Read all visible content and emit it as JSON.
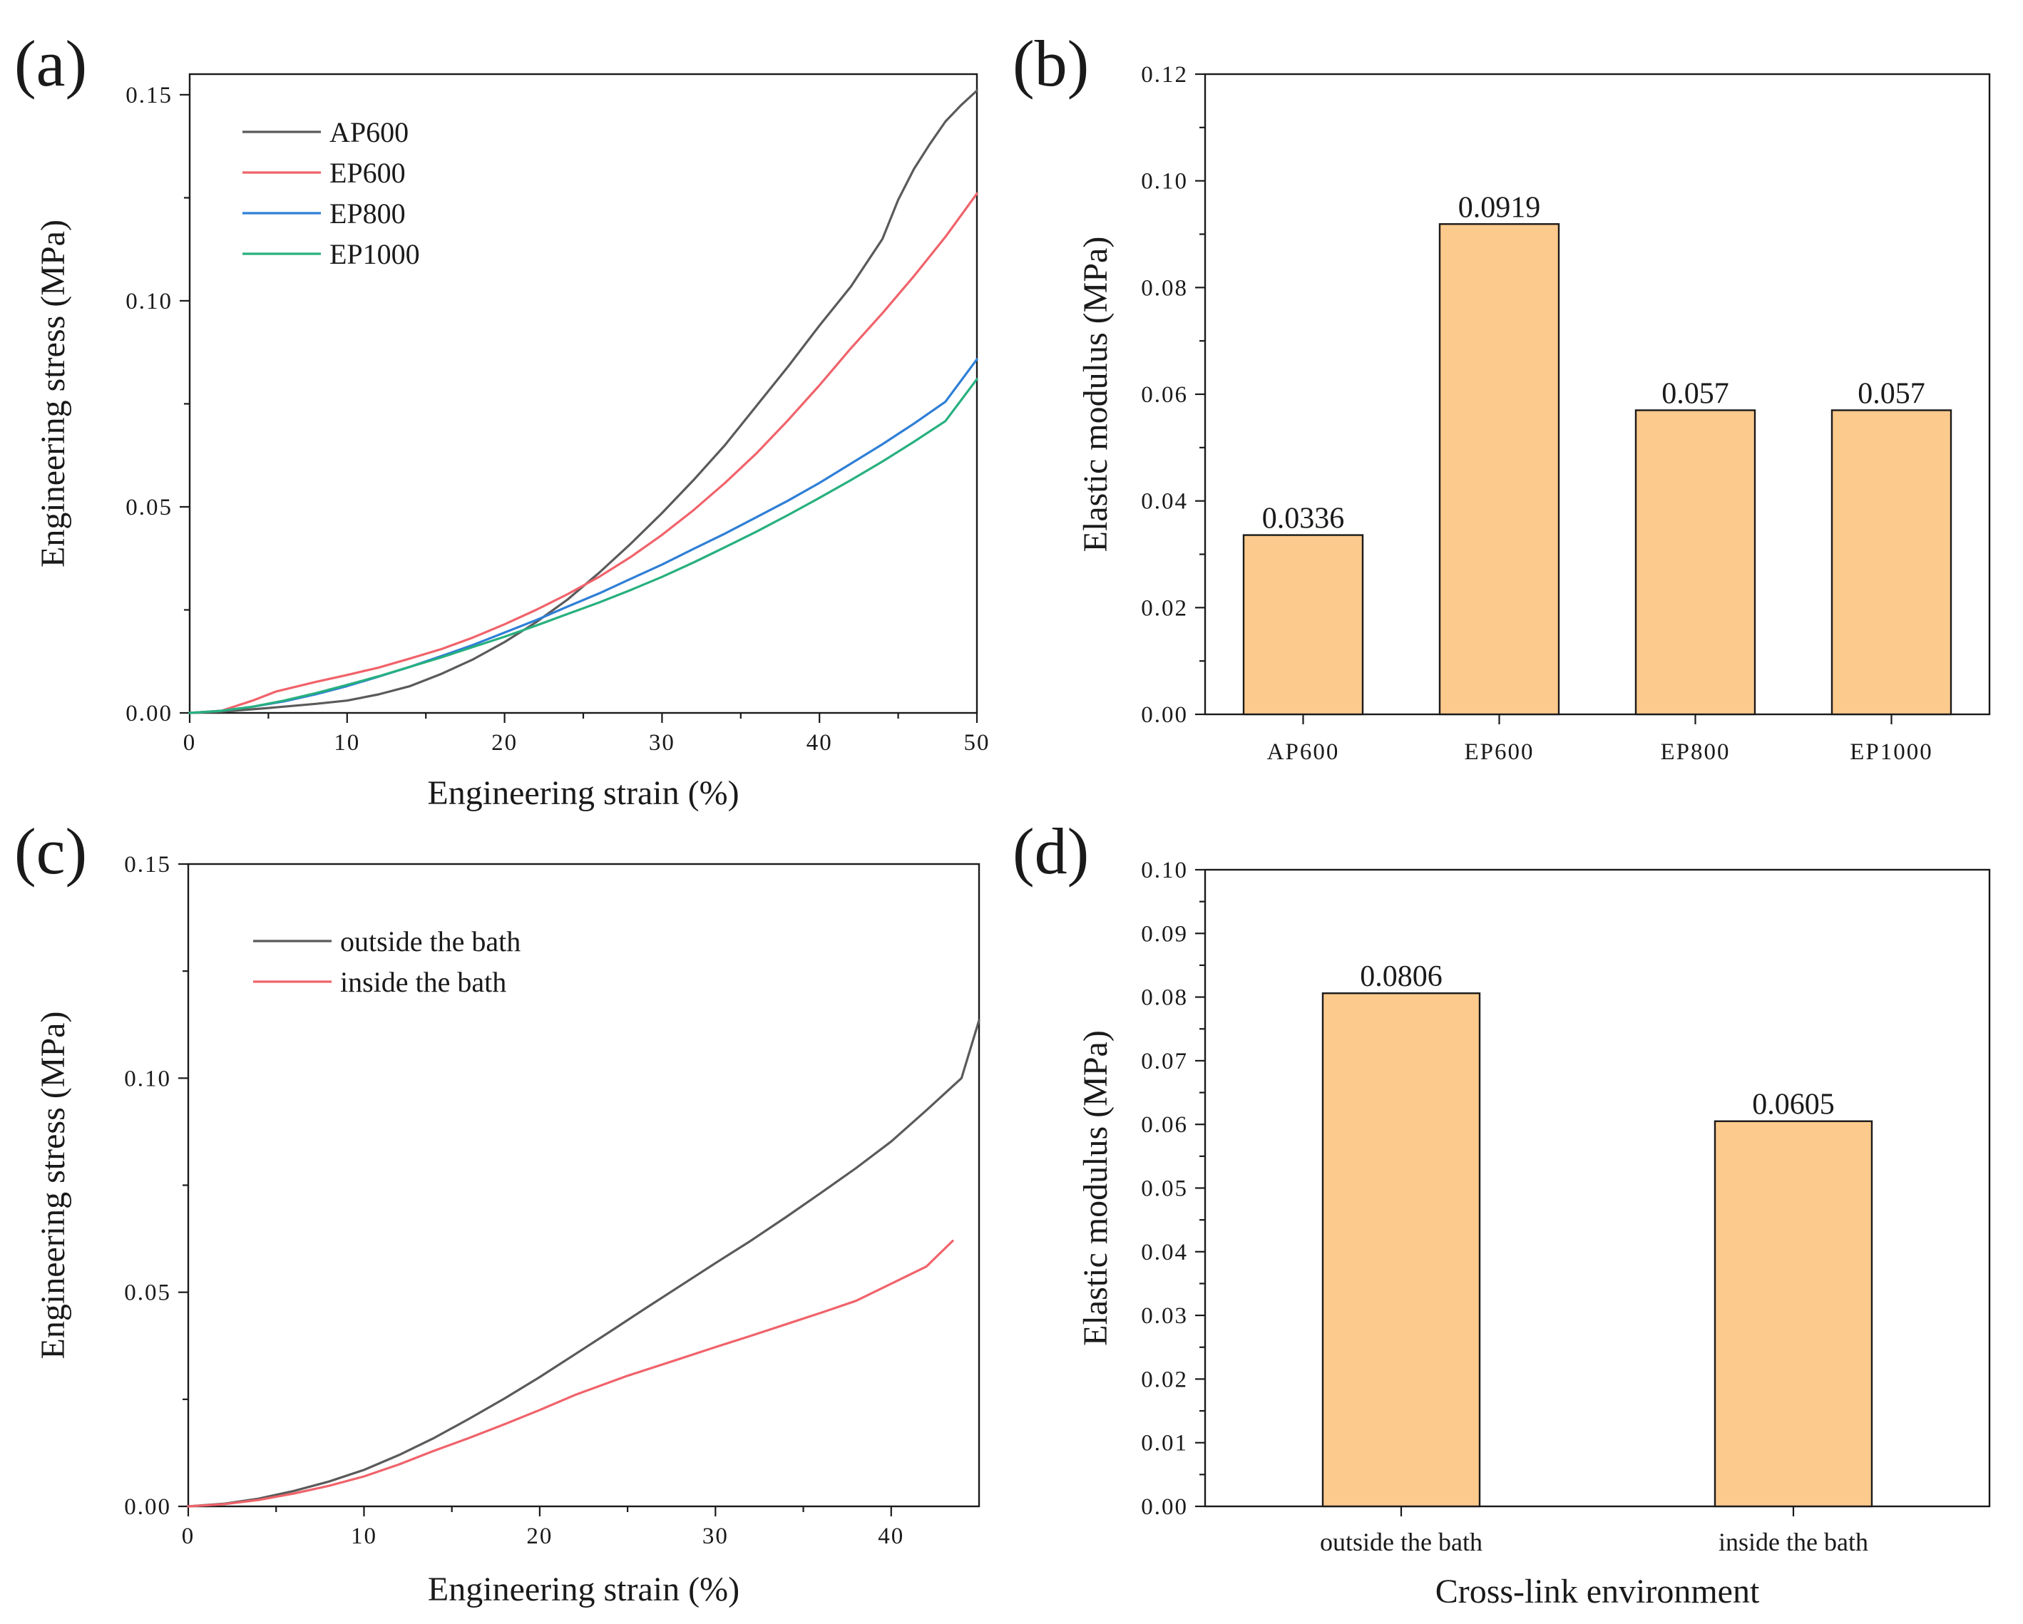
{
  "colors": {
    "AP600": "#5a5a5a",
    "EP600": "#f0636b",
    "EP800": "#2f7fd6",
    "EP1000": "#27b07e",
    "outside": "#5a5a5a",
    "inside": "#f0636b",
    "bar_fill": "#fdca8d"
  },
  "chart_data": [
    {
      "id": "a",
      "type": "line",
      "panel_label": "(a)",
      "xlabel": "Engineering strain (%)",
      "ylabel": "Engineering stress (MPa)",
      "xlim": [
        0,
        50
      ],
      "ylim": [
        0,
        0.155
      ],
      "xticks": [
        0,
        10,
        20,
        30,
        40,
        50
      ],
      "xtick_labels": [
        "0",
        "10",
        "20",
        "30",
        "40",
        "50"
      ],
      "yticks": [
        0,
        0.05,
        0.1,
        0.15
      ],
      "ytick_labels": [
        "0.00",
        "0.05",
        "0.10",
        "0.15"
      ],
      "legend_position": "top-left",
      "grid": false,
      "series": [
        {
          "name": "AP600",
          "color_key": "AP600",
          "x": [
            0,
            2,
            5,
            8,
            10,
            12,
            14,
            16,
            18,
            20,
            22,
            24,
            26,
            28,
            30,
            32,
            34,
            36,
            38,
            40,
            42,
            44,
            45,
            46,
            47,
            48,
            49,
            50
          ],
          "y": [
            0,
            0.0003,
            0.0012,
            0.0022,
            0.003,
            0.0045,
            0.0065,
            0.0095,
            0.013,
            0.0172,
            0.022,
            0.0275,
            0.034,
            0.041,
            0.0485,
            0.0565,
            0.065,
            0.0745,
            0.084,
            0.094,
            0.1035,
            0.115,
            0.1245,
            0.132,
            0.138,
            0.1435,
            0.1475,
            0.151
          ]
        },
        {
          "name": "EP600",
          "color_key": "EP600",
          "x": [
            0,
            2,
            4,
            5.5,
            8,
            10,
            12,
            14,
            16,
            18,
            20,
            22,
            24,
            26,
            28,
            30,
            32,
            34,
            36,
            38,
            40,
            42,
            44,
            46,
            48,
            50
          ],
          "y": [
            0,
            0.0005,
            0.003,
            0.0052,
            0.0075,
            0.0092,
            0.011,
            0.0132,
            0.0155,
            0.0183,
            0.0215,
            0.025,
            0.0288,
            0.033,
            0.0378,
            0.0432,
            0.0492,
            0.0558,
            0.063,
            0.071,
            0.0795,
            0.0885,
            0.097,
            0.106,
            0.1155,
            0.126
          ]
        },
        {
          "name": "EP800",
          "color_key": "EP800",
          "x": [
            0,
            2,
            4,
            6,
            8,
            10,
            12,
            14,
            16,
            18,
            20,
            22,
            24,
            26,
            28,
            30,
            32,
            34,
            36,
            38,
            40,
            42,
            44,
            46,
            48,
            50
          ],
          "y": [
            0,
            0.0005,
            0.0015,
            0.0028,
            0.0045,
            0.0065,
            0.0088,
            0.0112,
            0.0138,
            0.0165,
            0.0195,
            0.0225,
            0.0258,
            0.029,
            0.0325,
            0.036,
            0.0398,
            0.0435,
            0.0475,
            0.0515,
            0.0558,
            0.0605,
            0.0652,
            0.0702,
            0.0755,
            0.0858
          ]
        },
        {
          "name": "EP1000",
          "color_key": "EP1000",
          "x": [
            0,
            2,
            4,
            6,
            8,
            10,
            12,
            14,
            16,
            18,
            20,
            22,
            24,
            26,
            28,
            30,
            32,
            34,
            36,
            38,
            40,
            42,
            44,
            46,
            48,
            50
          ],
          "y": [
            0,
            0.0005,
            0.0015,
            0.003,
            0.0048,
            0.0068,
            0.0089,
            0.0112,
            0.0135,
            0.016,
            0.0185,
            0.0212,
            0.024,
            0.0268,
            0.0298,
            0.033,
            0.0365,
            0.0402,
            0.044,
            0.048,
            0.0522,
            0.0565,
            0.061,
            0.0658,
            0.0708,
            0.081
          ]
        }
      ]
    },
    {
      "id": "b",
      "type": "bar",
      "panel_label": "(b)",
      "xlabel": "",
      "ylabel": "Elastic modulus (MPa)",
      "ylim": [
        0,
        0.12
      ],
      "yticks": [
        0,
        0.02,
        0.04,
        0.06,
        0.08,
        0.1,
        0.12
      ],
      "ytick_labels": [
        "0.00",
        "0.02",
        "0.04",
        "0.06",
        "0.08",
        "0.10",
        "0.12"
      ],
      "categories": [
        "AP600",
        "EP600",
        "EP800",
        "EP1000"
      ],
      "values": [
        0.0336,
        0.0919,
        0.057,
        0.057
      ],
      "data_labels": [
        "0.0336",
        "0.0919",
        "0.057",
        "0.057"
      ]
    },
    {
      "id": "c",
      "type": "line",
      "panel_label": "(c)",
      "xlabel": "Engineering strain (%)",
      "ylabel": "Engineering stress (MPa)",
      "xlim": [
        0,
        45
      ],
      "ylim": [
        0,
        0.15
      ],
      "xticks": [
        0,
        10,
        20,
        30,
        40
      ],
      "xtick_labels": [
        "0",
        "10",
        "20",
        "30",
        "40"
      ],
      "yticks": [
        0,
        0.05,
        0.1,
        0.15
      ],
      "ytick_labels": [
        "0.00",
        "0.05",
        "0.10",
        "0.15"
      ],
      "legend_position": "top-left",
      "grid": false,
      "series": [
        {
          "name": "outside the bath",
          "color_key": "outside",
          "x": [
            0,
            2,
            4,
            6,
            8,
            10,
            12,
            14,
            16,
            18,
            20,
            22,
            24,
            26,
            28,
            30,
            32,
            34,
            36,
            38,
            40,
            42,
            44,
            45
          ],
          "y": [
            0,
            0.0006,
            0.0018,
            0.0036,
            0.0058,
            0.0085,
            0.012,
            0.016,
            0.0205,
            0.0252,
            0.0302,
            0.0355,
            0.0408,
            0.0462,
            0.0515,
            0.0568,
            0.062,
            0.0675,
            0.0732,
            0.079,
            0.0852,
            0.0925,
            0.1,
            0.1135
          ]
        },
        {
          "name": "inside the bath",
          "color_key": "inside",
          "x": [
            0,
            2,
            4,
            6,
            8,
            10,
            12,
            14,
            16,
            18,
            20,
            22,
            25,
            28,
            30,
            32,
            34,
            36,
            38,
            40,
            42,
            43.5
          ],
          "y": [
            0,
            0.0005,
            0.0015,
            0.003,
            0.0048,
            0.007,
            0.0098,
            0.013,
            0.016,
            0.0192,
            0.0225,
            0.026,
            0.0305,
            0.0345,
            0.0372,
            0.0398,
            0.0425,
            0.0452,
            0.048,
            0.052,
            0.056,
            0.062
          ]
        }
      ]
    },
    {
      "id": "d",
      "type": "bar",
      "panel_label": "(d)",
      "xlabel": "Cross-link environment",
      "ylabel": "Elastic modulus (MPa)",
      "ylim": [
        0,
        0.1
      ],
      "yticks": [
        0,
        0.01,
        0.02,
        0.03,
        0.04,
        0.05,
        0.06,
        0.07,
        0.08,
        0.09,
        0.1
      ],
      "ytick_labels": [
        "0.00",
        "0.01",
        "0.02",
        "0.03",
        "0.04",
        "0.05",
        "0.06",
        "0.07",
        "0.08",
        "0.09",
        "0.10"
      ],
      "categories": [
        "outside the bath",
        "inside the bath"
      ],
      "values": [
        0.0806,
        0.0605
      ],
      "data_labels": [
        "0.0806",
        "0.0605"
      ]
    }
  ]
}
